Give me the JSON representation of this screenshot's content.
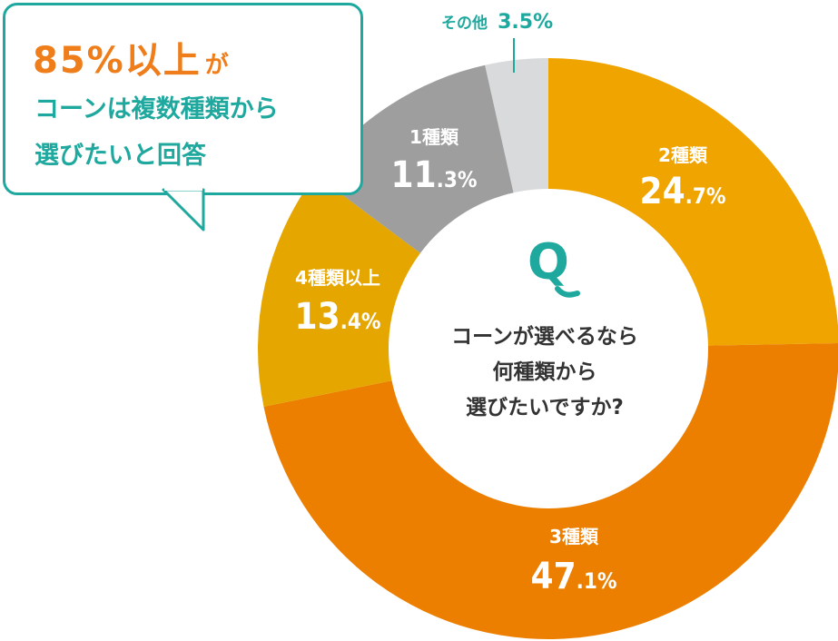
{
  "chart_data": {
    "type": "pie",
    "style": "donut",
    "slices": [
      {
        "category": "2種類",
        "value": 24.7,
        "color": "#f0a400"
      },
      {
        "category": "3種類",
        "value": 47.1,
        "color": "#ec7f00"
      },
      {
        "category": "4種類以上",
        "value": 13.4,
        "color": "#e5a600"
      },
      {
        "category": "1種類",
        "value": 11.3,
        "color": "#9e9e9e"
      },
      {
        "category": "その他",
        "value": 3.5,
        "color": "#d9dadb"
      }
    ],
    "start": "top (12 o'clock), clockwise",
    "center_text": [
      "コーンが選べるなら",
      "何種類から",
      "選びたいですか?"
    ],
    "center_mark": "Q"
  },
  "callout": {
    "headline": "85%以上",
    "headline_suffix": "が",
    "lines": [
      "コーンは複数種類から",
      "選びたいと回答"
    ],
    "border_color": "#1ea89e",
    "headline_color": "#ee7d1a"
  }
}
